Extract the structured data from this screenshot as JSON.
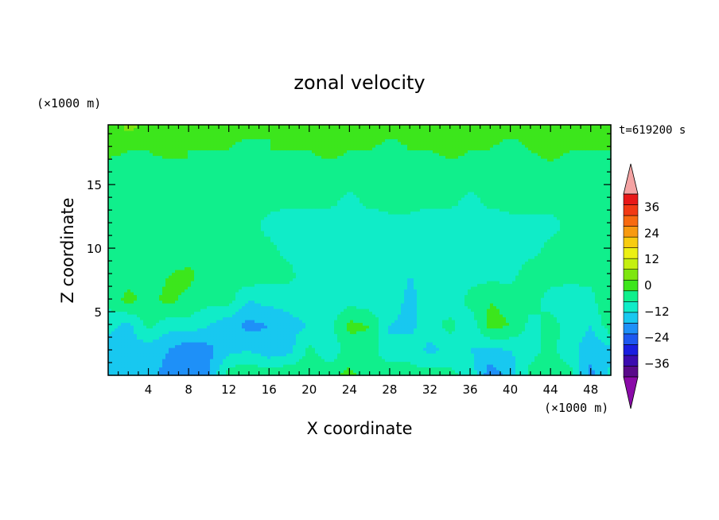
{
  "chart_data": {
    "type": "heatmap",
    "title": "zonal velocity",
    "xlabel": "X coordinate",
    "ylabel": "Z coordinate",
    "x_unit": "(×1000 m)",
    "y_unit": "(×1000 m)",
    "time_label": "t=619200 s",
    "xlim": [
      0,
      50
    ],
    "ylim": [
      0,
      19.7
    ],
    "x_ticks": [
      4,
      8,
      12,
      16,
      20,
      24,
      28,
      32,
      36,
      40,
      44,
      48
    ],
    "y_ticks": [
      5,
      10,
      15
    ],
    "x_tick_labels": [
      "4",
      "8",
      "12",
      "16",
      "20",
      "24",
      "28",
      "32",
      "36",
      "40",
      "44",
      "48"
    ],
    "y_tick_labels": [
      "5",
      "10",
      "15"
    ],
    "colorbar": {
      "min": -42,
      "max": 42,
      "step": 6,
      "tick_values": [
        36,
        24,
        12,
        0,
        -12,
        -24,
        -36
      ],
      "tick_labels": [
        "36",
        "24",
        "12",
        "0",
        "−12",
        "−24",
        "−36"
      ],
      "colors": [
        "#5a0a8a",
        "#3c0cb0",
        "#1a1ee0",
        "#1e58f0",
        "#1e90f8",
        "#18c8f0",
        "#10ecc8",
        "#10ef8c",
        "#3ce61c",
        "#7ee610",
        "#c4f010",
        "#ecf014",
        "#f8cc10",
        "#f89a10",
        "#f86a10",
        "#f23a14",
        "#e81818"
      ],
      "over_color": "#f4a3a3",
      "under_color": "#8a0aa8"
    },
    "grid": false,
    "field": {
      "nx": 26,
      "ny": 11,
      "x_step": 2,
      "z_step": 1.97,
      "u": [
        [
          -8,
          -10,
          -10,
          -14,
          -16,
          -12,
          4,
          6,
          4,
          6,
          2,
          4,
          8,
          2,
          6,
          2,
          4,
          2,
          -2,
          -16,
          -10,
          2,
          4,
          2,
          -14,
          -4
        ],
        [
          -10,
          -8,
          -10,
          -12,
          -18,
          -14,
          -8,
          -6,
          -10,
          -8,
          2,
          -4,
          2,
          4,
          -6,
          -2,
          -8,
          -4,
          -6,
          -8,
          -6,
          -2,
          2,
          -4,
          -10,
          -8
        ],
        [
          -4,
          -8,
          2,
          -4,
          -2,
          -6,
          -10,
          -14,
          -12,
          -8,
          -6,
          -2,
          8,
          6,
          -6,
          -8,
          -2,
          2,
          -4,
          8,
          6,
          -2,
          2,
          -2,
          -6,
          4
        ],
        [
          2,
          8,
          4,
          8,
          4,
          2,
          2,
          -6,
          -4,
          -4,
          -2,
          -4,
          -2,
          -4,
          -2,
          -8,
          -2,
          -4,
          2,
          6,
          4,
          2,
          -2,
          -4,
          -2,
          6
        ],
        [
          2,
          4,
          2,
          6,
          8,
          2,
          2,
          4,
          2,
          2,
          -4,
          -4,
          -6,
          -2,
          -2,
          -6,
          -4,
          -4,
          -2,
          -2,
          -2,
          4,
          2,
          2,
          2,
          2
        ],
        [
          2,
          2,
          4,
          2,
          2,
          2,
          2,
          2,
          2,
          -2,
          -4,
          -4,
          -4,
          -2,
          -4,
          -4,
          -4,
          -4,
          -2,
          -2,
          -4,
          -2,
          2,
          2,
          2,
          2
        ],
        [
          2,
          2,
          2,
          2,
          2,
          4,
          2,
          2,
          -2,
          -4,
          -4,
          -4,
          -2,
          -4,
          -2,
          -2,
          -4,
          -4,
          -2,
          -4,
          -2,
          -2,
          -2,
          2,
          2,
          2
        ],
        [
          2,
          4,
          2,
          2,
          2,
          2,
          2,
          4,
          2,
          2,
          2,
          2,
          -2,
          2,
          2,
          2,
          2,
          2,
          -2,
          2,
          2,
          2,
          2,
          2,
          4,
          2
        ],
        [
          2,
          2,
          4,
          2,
          6,
          4,
          2,
          2,
          4,
          2,
          4,
          2,
          4,
          2,
          2,
          4,
          2,
          2,
          4,
          2,
          4,
          2,
          4,
          2,
          2,
          4
        ],
        [
          8,
          6,
          6,
          8,
          6,
          6,
          6,
          4,
          6,
          6,
          6,
          8,
          6,
          6,
          4,
          6,
          6,
          8,
          6,
          6,
          4,
          6,
          8,
          6,
          6,
          6
        ],
        [
          8,
          14,
          10,
          6,
          6,
          8,
          8,
          8,
          6,
          8,
          6,
          6,
          8,
          10,
          8,
          8,
          6,
          8,
          6,
          8,
          8,
          8,
          6,
          8,
          8,
          6
        ]
      ]
    }
  }
}
